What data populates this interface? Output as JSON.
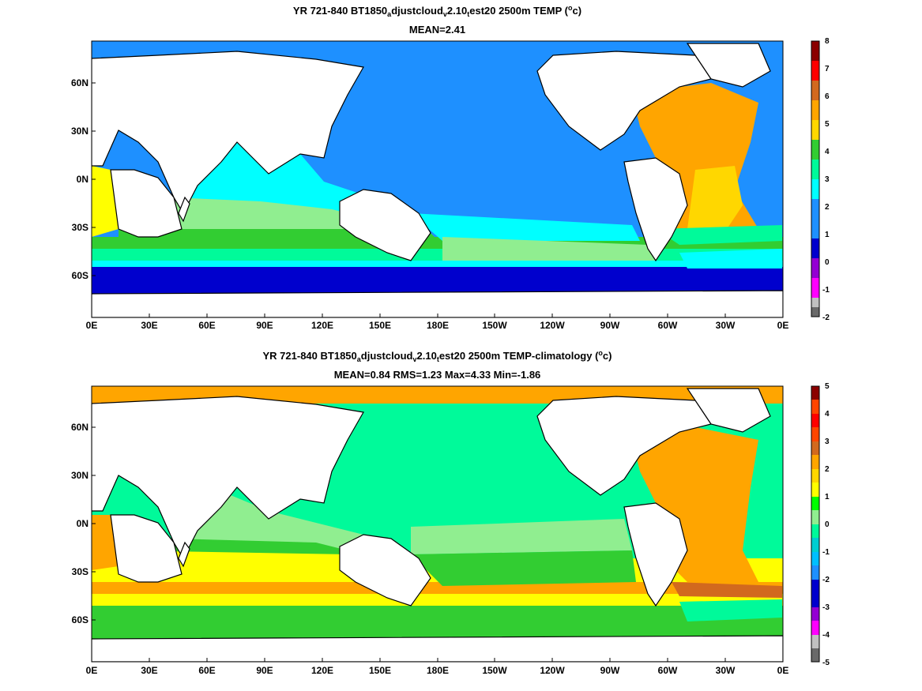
{
  "panels": [
    {
      "title_prefix": "YR 721-840 BT1850",
      "title_sub1": "a",
      "title_mid1": "djustcloud",
      "title_sub2": "v",
      "title_mid2": "2.10",
      "title_sub3": "t",
      "title_mid3": "est20 2500m TEMP (",
      "title_sup": "o",
      "title_suffix": "c)",
      "stats": "MEAN=2.41",
      "colorbar_ticks": [
        "8",
        "7",
        "6",
        "5",
        "4",
        "3",
        "2",
        "1",
        "0",
        "-1",
        "-2"
      ],
      "colorbar_colors": [
        "#8b0000",
        "#ff0000",
        "#d2691e",
        "#ffa500",
        "#ffd700",
        "#32cd32",
        "#00fa9a",
        "#00ffff",
        "#1e90ff",
        "#0000cd",
        "#9400d3",
        "#ff00ff",
        "#c0c0c0",
        "#696969"
      ]
    },
    {
      "title_prefix": "YR 721-840 BT1850",
      "title_sub1": "a",
      "title_mid1": "djustcloud",
      "title_sub2": "v",
      "title_mid2": "2.10",
      "title_sub3": "t",
      "title_mid3": "est20 2500m TEMP-climatology (",
      "title_sup": "o",
      "title_suffix": "c)",
      "stats": "MEAN=0.84   RMS=1.23   Max=4.33   Min=-1.86",
      "colorbar_ticks": [
        "5",
        "4",
        "3",
        "2",
        "1",
        "0",
        "-1",
        "-2",
        "-3",
        "-4",
        "-5"
      ],
      "colorbar_colors": [
        "#8b0000",
        "#ff4500",
        "#ff0000",
        "#d2691e",
        "#ffa500",
        "#ffd700",
        "#ffff00",
        "#00ff00",
        "#90ee90",
        "#00fa9a",
        "#00ced1",
        "#00bfff",
        "#1e90ff",
        "#0000cd",
        "#9400d3",
        "#ff00ff",
        "#c0c0c0",
        "#696969"
      ]
    }
  ],
  "map": {
    "x_ticks": [
      "0E",
      "30E",
      "60E",
      "90E",
      "120E",
      "150E",
      "180E",
      "150W",
      "120W",
      "90W",
      "60W",
      "30W",
      "0E"
    ],
    "y_ticks": [
      "60N",
      "30N",
      "0N",
      "30S",
      "60S"
    ],
    "land_color": "#ffffff",
    "coast_color": "#000000"
  }
}
